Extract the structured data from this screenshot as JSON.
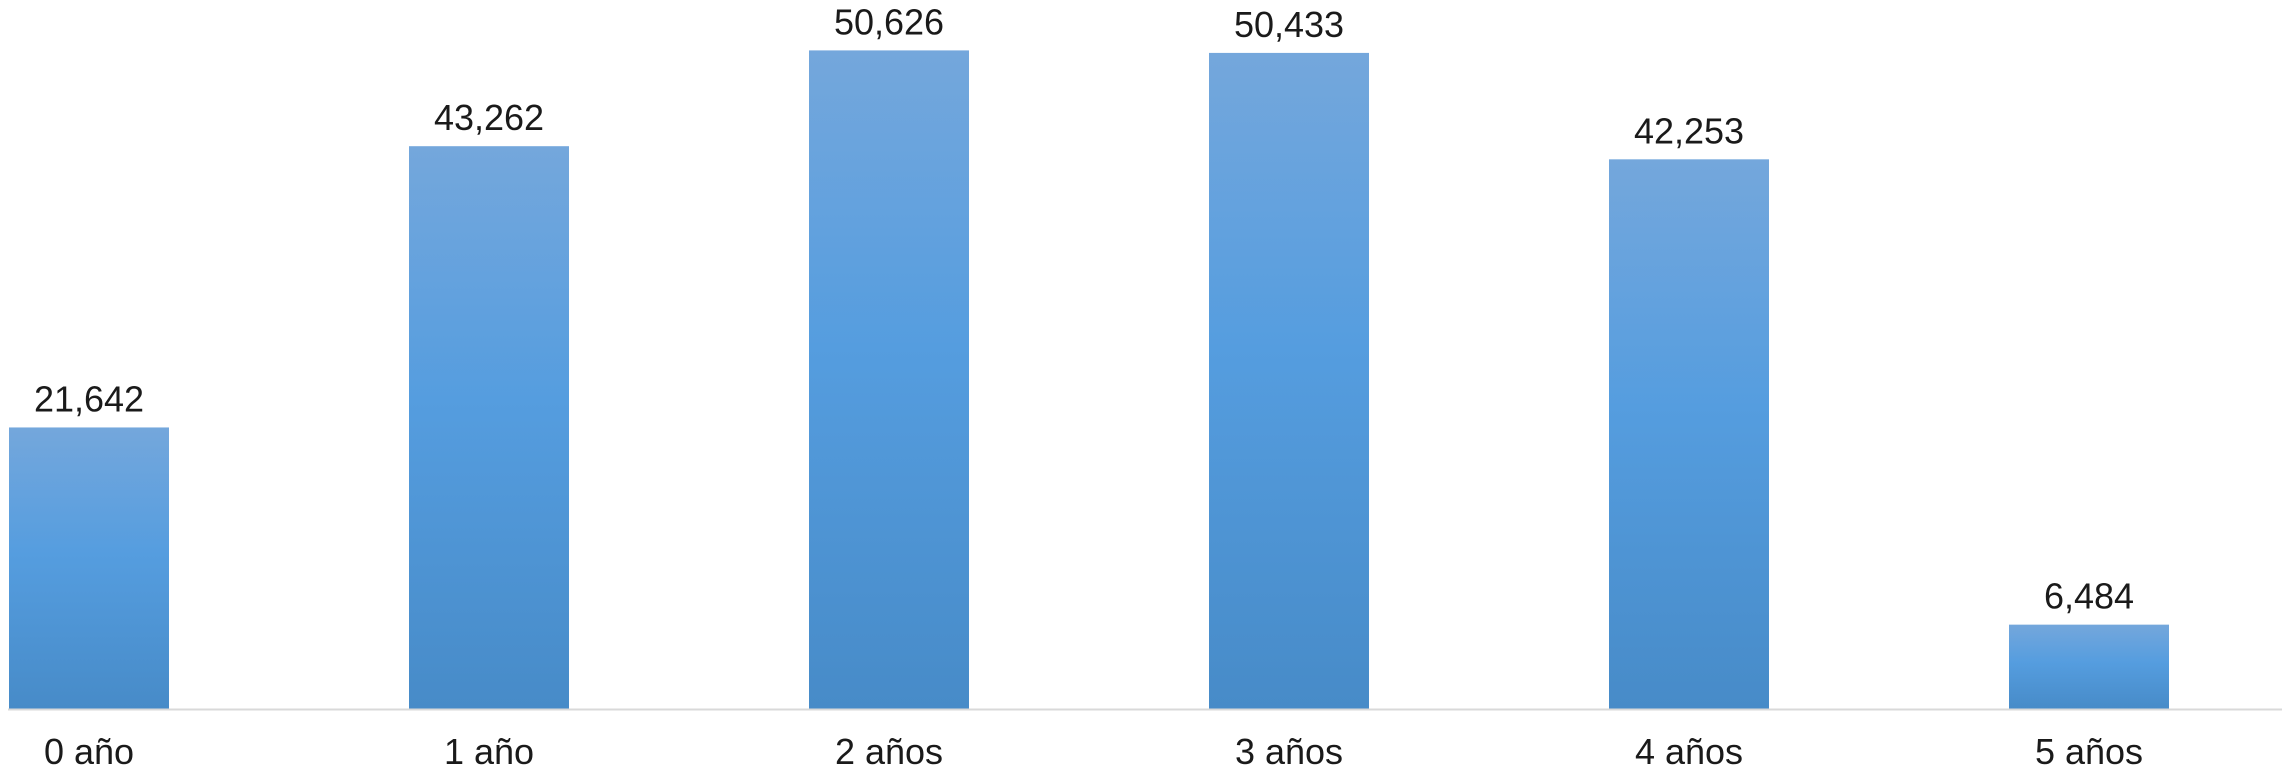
{
  "chart_data": {
    "type": "bar",
    "categories": [
      "0 año",
      "1 año",
      "2 años",
      "3 años",
      "4 años",
      "5 años"
    ],
    "values": [
      21642,
      43262,
      50626,
      50433,
      42253,
      6484
    ],
    "value_labels": [
      "21,642",
      "43,262",
      "50,626",
      "50,433",
      "42,253",
      "6,484"
    ],
    "title": "",
    "xlabel": "",
    "ylabel": "",
    "ylim": [
      0,
      54500
    ],
    "grid": false,
    "legend": "none",
    "colors": {
      "bar_top": "#74a7dc",
      "bar_mid": "#559ddf",
      "bar_bottom": "#478bc8",
      "axis": "#d9d9d9"
    }
  }
}
